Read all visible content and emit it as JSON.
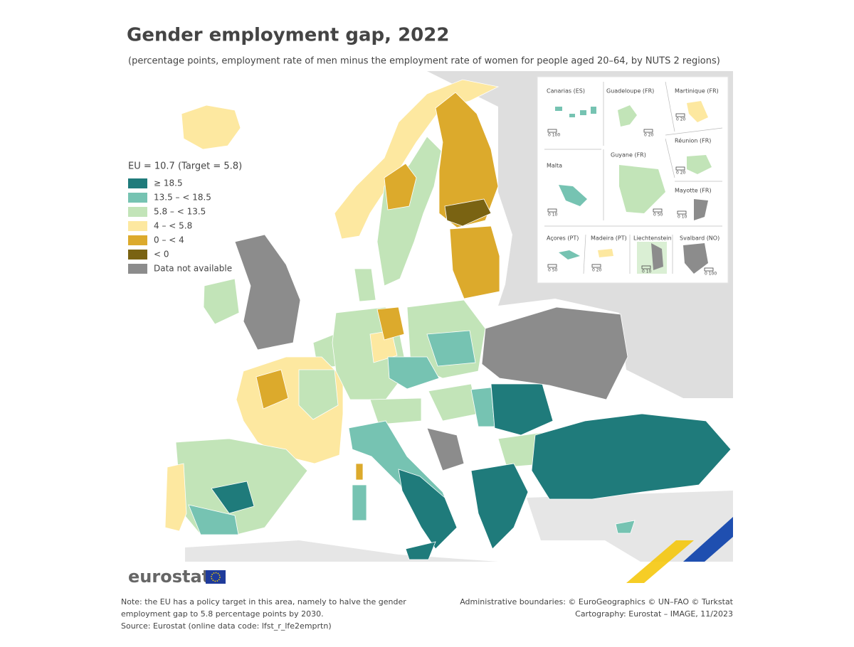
{
  "header": {
    "title": "Gender employment gap, 2022",
    "subtitle": "(percentage points, employment rate of men minus the employment rate of women for people aged 20–64, by NUTS 2 regions)"
  },
  "legend": {
    "title": "EU = 10.7 (Target = 5.8)",
    "items": [
      {
        "label": "≥ 18.5",
        "color": "#1f7b7b"
      },
      {
        "label": "13.5 – < 18.5",
        "color": "#76c3b2"
      },
      {
        "label": "5.8 – < 13.5",
        "color": "#c2e4b8"
      },
      {
        "label": "4 – < 5.8",
        "color": "#fde8a0"
      },
      {
        "label": "0 – < 4",
        "color": "#dcaa2c"
      },
      {
        "label": "< 0",
        "color": "#7a6312"
      },
      {
        "label": "Data not available",
        "color": "#8c8c8c"
      }
    ]
  },
  "insets": [
    {
      "name": "Canarias (ES)",
      "scale": "0   100"
    },
    {
      "name": "Guadeloupe (FR)",
      "scale": "0   20"
    },
    {
      "name": "Martinique (FR)",
      "scale": "0   20"
    },
    {
      "name": "Réunion (FR)",
      "scale": "0   20"
    },
    {
      "name": "Malta",
      "scale": "0   10"
    },
    {
      "name": "Guyane (FR)",
      "scale": "0   50"
    },
    {
      "name": "Mayotte (FR)",
      "scale": "0   10"
    },
    {
      "name": "Açores (PT)",
      "scale": "0   50"
    },
    {
      "name": "Madeira (PT)",
      "scale": "0   20"
    },
    {
      "name": "Liechtenstein",
      "scale": "0   10"
    },
    {
      "name": "Svalbard (NO)",
      "scale": "0   100"
    }
  ],
  "logo": "eurostat",
  "note": [
    "Note: the EU has a policy target in this area, namely to halve the gender",
    "employment gap to 5.8 percentage points by 2030.",
    "Source: Eurostat (online data code: lfst_r_lfe2emprtn)"
  ],
  "credits": [
    "Administrative boundaries: © EuroGeographics © UN–FAO © Turkstat",
    "Cartography: Eurostat – IMAGE, 11/2023"
  ]
}
